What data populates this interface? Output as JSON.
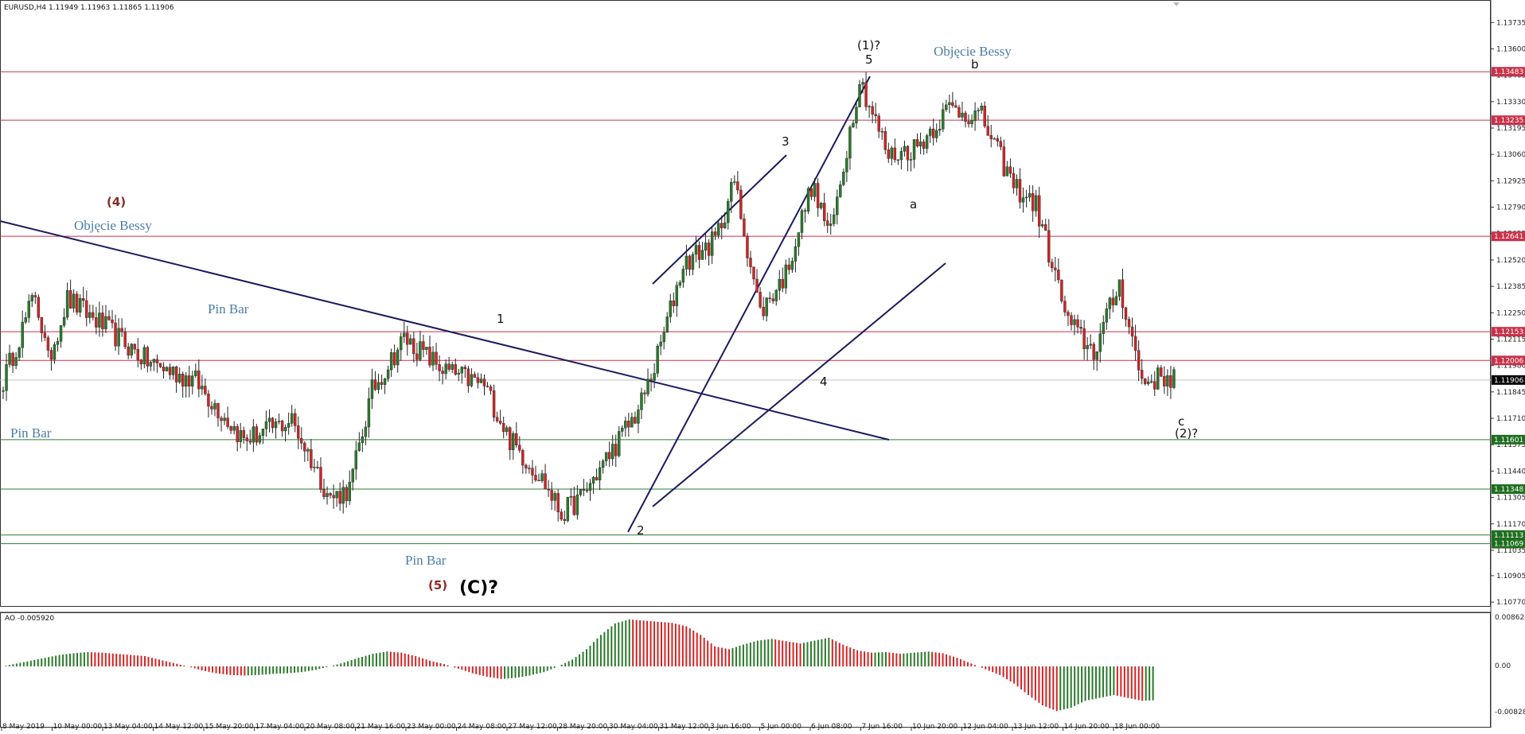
{
  "header": {
    "symbol_info": "EURUSD,H4  1.11949 1.11963 1.11865 1.11906"
  },
  "indicator": {
    "label": "AO -0.005920",
    "ticks": [
      "0.008624",
      "0.00",
      "-0.008282"
    ]
  },
  "colors": {
    "bull": "#2a7a2a",
    "bear": "#d22424",
    "resistance": "#c8324a",
    "support": "#2e7d32",
    "current": "#000000",
    "trend": "#1a1a5e",
    "annotation": "#4a7ea6"
  },
  "chart_data": {
    "type": "candlestick",
    "symbol": "EURUSD",
    "timeframe": "H4",
    "ohlc_current": {
      "open": 1.11949,
      "high": 1.11963,
      "low": 1.11865,
      "close": 1.11906
    },
    "ylim": [
      1.1075,
      1.1385
    ],
    "y_ticks": [
      "1.13735",
      "1.13600",
      "1.13465",
      "1.13330",
      "1.13195",
      "1.13060",
      "1.12925",
      "1.12790",
      "1.12655",
      "1.12520",
      "1.12385",
      "1.12250",
      "1.12115",
      "1.11980",
      "1.11845",
      "1.11710",
      "1.11575",
      "1.11440",
      "1.11305",
      "1.11170",
      "1.11035",
      "1.10905",
      "1.10770"
    ],
    "x_ticks": [
      "8 May 2019",
      "10 May 00:00",
      "13 May 04:00",
      "14 May 12:00",
      "15 May 20:00",
      "17 May 04:00",
      "20 May 08:00",
      "21 May 16:00",
      "23 May 00:00",
      "24 May 08:00",
      "27 May 12:00",
      "28 May 20:00",
      "30 May 04:00",
      "31 May 12:00",
      "3 Jun 16:00",
      "5 Jun 00:00",
      "6 Jun 08:00",
      "7 Jun 16:00",
      "10 Jun 20:00",
      "12 Jun 04:00",
      "13 Jun 12:00",
      "14 Jun 20:00",
      "18 Jun 00:00"
    ],
    "levels": [
      {
        "value": 1.13483,
        "label": "1.13483",
        "kind": "resistance"
      },
      {
        "value": 1.13235,
        "label": "1.13235",
        "kind": "resistance"
      },
      {
        "value": 1.12641,
        "label": "1.12641",
        "kind": "resistance"
      },
      {
        "value": 1.12153,
        "label": "1.12153",
        "kind": "resistance"
      },
      {
        "value": 1.12006,
        "label": "1.12006",
        "kind": "resistance"
      },
      {
        "value": 1.11906,
        "label": "1.11906",
        "kind": "current"
      },
      {
        "value": 1.11601,
        "label": "1.11601",
        "kind": "support"
      },
      {
        "value": 1.11348,
        "label": "1.11348",
        "kind": "support"
      },
      {
        "value": 1.11113,
        "label": "1.11113",
        "kind": "support"
      },
      {
        "value": 1.11069,
        "label": "1.11069",
        "kind": "support"
      }
    ],
    "price_path": [
      [
        0,
        1.119
      ],
      [
        10,
        1.1235
      ],
      [
        14,
        1.12
      ],
      [
        20,
        1.1232
      ],
      [
        30,
        1.122
      ],
      [
        45,
        1.12
      ],
      [
        60,
        1.119
      ],
      [
        75,
        1.116
      ],
      [
        90,
        1.117
      ],
      [
        102,
        1.113
      ],
      [
        108,
        1.1135
      ],
      [
        115,
        1.1185
      ],
      [
        125,
        1.1212
      ],
      [
        138,
        1.1195
      ],
      [
        150,
        1.1188
      ],
      [
        158,
        1.116
      ],
      [
        168,
        1.114
      ],
      [
        174,
        1.1122
      ],
      [
        180,
        1.113
      ],
      [
        188,
        1.115
      ],
      [
        198,
        1.1175
      ],
      [
        203,
        1.1197
      ],
      [
        212,
        1.125
      ],
      [
        222,
        1.1262
      ],
      [
        228,
        1.1292
      ],
      [
        236,
        1.1225
      ],
      [
        244,
        1.1245
      ],
      [
        252,
        1.129
      ],
      [
        258,
        1.1265
      ],
      [
        267,
        1.1345
      ],
      [
        276,
        1.1305
      ],
      [
        285,
        1.131
      ],
      [
        295,
        1.133
      ],
      [
        305,
        1.1325
      ],
      [
        315,
        1.129
      ],
      [
        322,
        1.128
      ],
      [
        332,
        1.122
      ],
      [
        340,
        1.1205
      ],
      [
        348,
        1.124
      ],
      [
        355,
        1.119
      ],
      [
        362,
        1.1192
      ]
    ],
    "ao_histogram": [
      0.0,
      0.0005,
      0.001,
      0.0015,
      0.002,
      0.0023,
      0.0025,
      0.0024,
      0.0022,
      0.002,
      0.0018,
      0.0012,
      0.0006,
      0.0,
      -0.0007,
      -0.0012,
      -0.0015,
      -0.0016,
      -0.0015,
      -0.0013,
      -0.0012,
      -0.001,
      -0.0006,
      0.0,
      0.0007,
      0.0015,
      0.0022,
      0.0026,
      0.0024,
      0.0018,
      0.001,
      0.0004,
      -0.0004,
      -0.0012,
      -0.0018,
      -0.0022,
      -0.002,
      -0.0016,
      -0.001,
      0.0,
      0.0012,
      0.003,
      0.0055,
      0.0075,
      0.0082,
      0.008,
      0.0078,
      0.0076,
      0.007,
      0.0055,
      0.0035,
      0.003,
      0.0038,
      0.0045,
      0.0048,
      0.0044,
      0.004,
      0.0045,
      0.005,
      0.0038,
      0.0028,
      0.0024,
      0.0025,
      0.0022,
      0.0024,
      0.0026,
      0.0023,
      0.0015,
      0.0005,
      -0.0005,
      -0.0015,
      -0.003,
      -0.005,
      -0.0068,
      -0.0078,
      -0.0072,
      -0.006,
      -0.0055,
      -0.005,
      -0.0055,
      -0.006,
      -0.0059
    ],
    "annotations": [
      {
        "text": "(4)",
        "style": "brown"
      },
      {
        "text": "Objęcie Bessy",
        "style": "blue"
      },
      {
        "text": "Pin Bar",
        "style": "blue"
      },
      {
        "text": "Pin Bar",
        "style": "blue"
      },
      {
        "text": "Pin Bar",
        "style": "blue"
      },
      {
        "text": "(5)",
        "style": "brown"
      },
      {
        "text": "(C)?",
        "style": "big"
      },
      {
        "text": "1",
        "style": "black"
      },
      {
        "text": "2",
        "style": "black"
      },
      {
        "text": "3",
        "style": "black"
      },
      {
        "text": "4",
        "style": "black"
      },
      {
        "text": "5",
        "style": "black"
      },
      {
        "text": "(1)?",
        "style": "black"
      },
      {
        "text": "Objęcie Bessy",
        "style": "blue"
      },
      {
        "text": "b",
        "style": "black"
      },
      {
        "text": "a",
        "style": "black"
      },
      {
        "text": "c",
        "style": "black"
      },
      {
        "text": "(2)?",
        "style": "black"
      }
    ]
  }
}
